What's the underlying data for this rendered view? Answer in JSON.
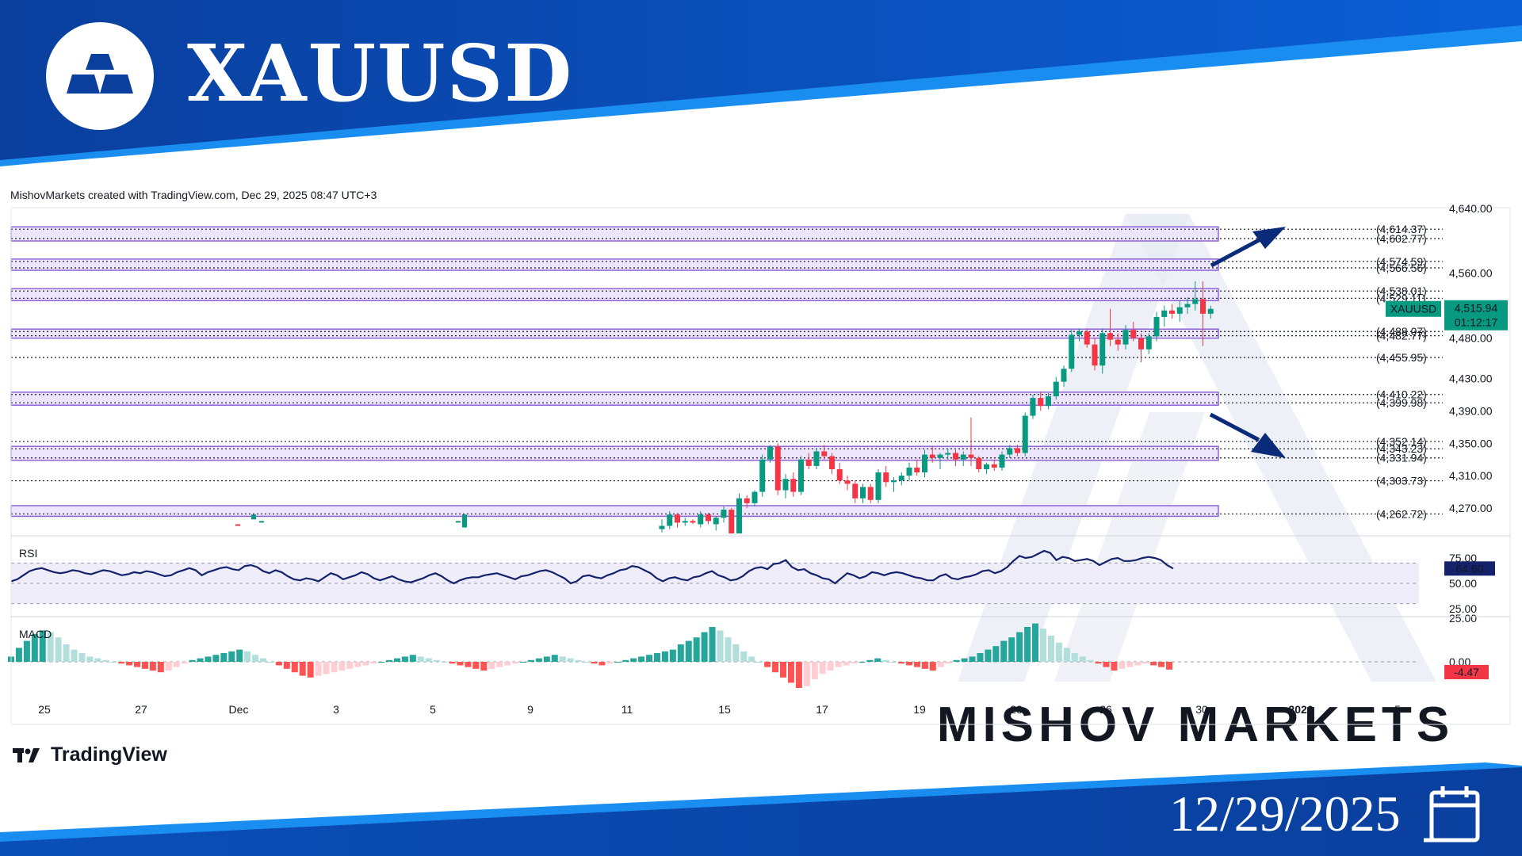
{
  "header": {
    "symbol": "XAUUSD",
    "logo_icon": "gold-bars-icon",
    "brand_color": "#0a4fb5"
  },
  "attribution": "MishovMarkets created with TradingView.com, Dec 29, 2025 08:47 UTC+3",
  "footer": {
    "tradingview_label": "TradingView",
    "date": "12/29/2025",
    "calendar_icon": "calendar-icon"
  },
  "watermark": "MISHOV MARKETS",
  "chart_data": {
    "type": "candlestick",
    "symbol_label": "XAUUSD",
    "last_price_label": "4,515.94",
    "countdown_label": "01:12:17",
    "last_price": 4515.94,
    "price_ticks": [
      "4,640.00",
      "4,560.00",
      "4,480.00",
      "4,430.00",
      "4,390.00",
      "4,350.00",
      "4,310.00",
      "4,270.00"
    ],
    "date_ticks": [
      "25",
      "27",
      "Dec",
      "3",
      "5",
      "9",
      "11",
      "15",
      "17",
      "19",
      "23",
      "26",
      "30",
      "2026",
      "5"
    ],
    "levels": [
      {
        "label": "(4,614.37)",
        "value": 4614.37
      },
      {
        "label": "(4,602.77)",
        "value": 4602.77
      },
      {
        "label": "(4,574.59)",
        "value": 4574.59
      },
      {
        "label": "(4,566.56)",
        "value": 4566.56
      },
      {
        "label": "(4,538.01)",
        "value": 4538.01
      },
      {
        "label": "(4,529.11)",
        "value": 4529.11
      },
      {
        "label": "(4,488.07)",
        "value": 4488.07
      },
      {
        "label": "(4,482.77)",
        "value": 4482.77
      },
      {
        "label": "(4,455.95)",
        "value": 4455.95
      },
      {
        "label": "(4,410.22)",
        "value": 4410.22
      },
      {
        "label": "(4,399.98)",
        "value": 4399.98
      },
      {
        "label": "(4,352.14)",
        "value": 4352.14
      },
      {
        "label": "(4,343.23)",
        "value": 4343.23
      },
      {
        "label": "(4,331.94)",
        "value": 4331.94
      },
      {
        "label": "(4,303.73)",
        "value": 4303.73
      },
      {
        "label": "(4,262.72)",
        "value": 4262.72
      }
    ],
    "zones": [
      [
        4602.77,
        4614.37
      ],
      [
        4566.56,
        4574.59
      ],
      [
        4529.11,
        4538.01
      ],
      [
        4482.77,
        4488.07
      ],
      [
        4399.98,
        4410.22
      ],
      [
        4331.94,
        4343.23
      ],
      [
        4262.72,
        4270.0
      ]
    ],
    "candles": [
      [
        4244,
        4256,
        4240,
        4248
      ],
      [
        4248,
        4266,
        4244,
        4262
      ],
      [
        4262,
        4264,
        4246,
        4252
      ],
      [
        4252,
        4258,
        4248,
        4254
      ],
      [
        4254,
        4256,
        4250,
        4252
      ],
      [
        4250,
        4266,
        4246,
        4262
      ],
      [
        4262,
        4264,
        4250,
        4254
      ],
      [
        4250,
        4260,
        4242,
        4258
      ],
      [
        4258,
        4272,
        4252,
        4268
      ],
      [
        4268,
        4270,
        4222,
        4236
      ],
      [
        4236,
        4288,
        4230,
        4282
      ],
      [
        4282,
        4286,
        4270,
        4276
      ],
      [
        4276,
        4292,
        4272,
        4290
      ],
      [
        4290,
        4336,
        4284,
        4330
      ],
      [
        4330,
        4348,
        4326,
        4346
      ],
      [
        4346,
        4350,
        4286,
        4292
      ],
      [
        4292,
        4312,
        4282,
        4306
      ],
      [
        4306,
        4314,
        4284,
        4290
      ],
      [
        4290,
        4334,
        4286,
        4330
      ],
      [
        4330,
        4338,
        4318,
        4322
      ],
      [
        4322,
        4344,
        4318,
        4340
      ],
      [
        4340,
        4348,
        4330,
        4334
      ],
      [
        4334,
        4338,
        4312,
        4318
      ],
      [
        4318,
        4326,
        4300,
        4304
      ],
      [
        4304,
        4310,
        4292,
        4300
      ],
      [
        4300,
        4304,
        4276,
        4282
      ],
      [
        4282,
        4300,
        4276,
        4296
      ],
      [
        4296,
        4300,
        4276,
        4280
      ],
      [
        4280,
        4318,
        4276,
        4314
      ],
      [
        4314,
        4322,
        4296,
        4302
      ],
      [
        4302,
        4308,
        4290,
        4304
      ],
      [
        4304,
        4314,
        4298,
        4310
      ],
      [
        4310,
        4326,
        4304,
        4320
      ],
      [
        4320,
        4330,
        4310,
        4314
      ],
      [
        4314,
        4342,
        4308,
        4336
      ],
      [
        4336,
        4346,
        4326,
        4332
      ],
      [
        4332,
        4338,
        4318,
        4336
      ],
      [
        4336,
        4344,
        4330,
        4338
      ],
      [
        4338,
        4342,
        4322,
        4330
      ],
      [
        4330,
        4340,
        4322,
        4336
      ],
      [
        4336,
        4382,
        4322,
        4332
      ],
      [
        4332,
        4334,
        4314,
        4318
      ],
      [
        4318,
        4326,
        4312,
        4324
      ],
      [
        4324,
        4330,
        4316,
        4320
      ],
      [
        4320,
        4340,
        4316,
        4336
      ],
      [
        4336,
        4348,
        4332,
        4344
      ],
      [
        4344,
        4348,
        4334,
        4338
      ],
      [
        4338,
        4388,
        4334,
        4384
      ],
      [
        4384,
        4410,
        4380,
        4406
      ],
      [
        4406,
        4414,
        4390,
        4396
      ],
      [
        4396,
        4412,
        4392,
        4408
      ],
      [
        4408,
        4432,
        4404,
        4426
      ],
      [
        4426,
        4446,
        4420,
        4442
      ],
      [
        4442,
        4490,
        4438,
        4484
      ],
      [
        4484,
        4492,
        4476,
        4488
      ],
      [
        4488,
        4492,
        4468,
        4472
      ],
      [
        4472,
        4480,
        4440,
        4446
      ],
      [
        4446,
        4492,
        4436,
        4486
      ],
      [
        4486,
        4516,
        4470,
        4478
      ],
      [
        4478,
        4486,
        4464,
        4472
      ],
      [
        4472,
        4496,
        4466,
        4490
      ],
      [
        4490,
        4500,
        4476,
        4480
      ],
      [
        4480,
        4486,
        4450,
        4466
      ],
      [
        4466,
        4486,
        4460,
        4482
      ],
      [
        4482,
        4512,
        4476,
        4506
      ],
      [
        4506,
        4520,
        4494,
        4514
      ],
      [
        4514,
        4522,
        4504,
        4510
      ],
      [
        4510,
        4526,
        4500,
        4518
      ],
      [
        4518,
        4530,
        4510,
        4522
      ],
      [
        4522,
        4550,
        4514,
        4528
      ],
      [
        4528,
        4550,
        4470,
        4510
      ],
      [
        4510,
        4520,
        4504,
        4516
      ]
    ],
    "rsi": {
      "label": "RSI",
      "last_label": "64.60",
      "last": 64.6,
      "ticks": [
        "75.00",
        "50.00",
        "25.00"
      ],
      "values": [
        52,
        54,
        58,
        62,
        64,
        65,
        63,
        61,
        60,
        61,
        63,
        62,
        60,
        59,
        61,
        63,
        62,
        60,
        58,
        59,
        61,
        60,
        62,
        61,
        59,
        57,
        58,
        61,
        63,
        65,
        63,
        58,
        61,
        63,
        65,
        66,
        64,
        63,
        67,
        68,
        66,
        62,
        60,
        63,
        61,
        57,
        54,
        53,
        55,
        54,
        52,
        56,
        60,
        58,
        54,
        56,
        58,
        61,
        59,
        55,
        53,
        55,
        57,
        54,
        52,
        51,
        53,
        55,
        58,
        60,
        57,
        53,
        50,
        53,
        55,
        56,
        56,
        58,
        59,
        60,
        58,
        56,
        54,
        57,
        58,
        60,
        62,
        63,
        61,
        58,
        55,
        50,
        52,
        57,
        58,
        56,
        55,
        58,
        60,
        63,
        64,
        67,
        66,
        63,
        60,
        55,
        52,
        55,
        56,
        54,
        53,
        56,
        57,
        60,
        62,
        58,
        56,
        53,
        54,
        57,
        62,
        65,
        66,
        64,
        69,
        70,
        73,
        66,
        63,
        64,
        60,
        58,
        55,
        54,
        50,
        55,
        60,
        58,
        55,
        57,
        61,
        60,
        58,
        60,
        61,
        60,
        58,
        56,
        55,
        53,
        53,
        57,
        59,
        55,
        54,
        56,
        57,
        59,
        62,
        63,
        60,
        62,
        66,
        72,
        77,
        75,
        76,
        79,
        82,
        80,
        73,
        76,
        75,
        72,
        73,
        74,
        72,
        68,
        71,
        74,
        75,
        72,
        72,
        73,
        75,
        76,
        75,
        73,
        68,
        64.6
      ]
    },
    "macd": {
      "label": "MACD",
      "last_label": "-4.47",
      "last": -4.47,
      "zero_label": "0.00",
      "ticks": [
        "25.00",
        "0.00"
      ],
      "hist": [
        3,
        8,
        12,
        16,
        18,
        17,
        14,
        10,
        7,
        5,
        3,
        2,
        1,
        0,
        -1,
        -2,
        -3,
        -4,
        -5,
        -6,
        -5,
        -3,
        -1,
        1,
        2,
        3,
        4,
        5,
        6,
        7,
        6,
        4,
        2,
        0,
        -2,
        -4,
        -6,
        -8,
        -9,
        -8,
        -7,
        -6,
        -5,
        -4,
        -3,
        -2,
        -1,
        0,
        1,
        2,
        3,
        4,
        3,
        2,
        1,
        0,
        -1,
        -2,
        -3,
        -4,
        -5,
        -4,
        -3,
        -2,
        -1,
        0,
        1,
        2,
        3,
        4,
        3,
        2,
        1,
        0,
        -1,
        -2,
        -1,
        0,
        1,
        2,
        3,
        4,
        5,
        6,
        7,
        10,
        12,
        14,
        17,
        20,
        18,
        14,
        10,
        6,
        3,
        0,
        -3,
        -6,
        -9,
        -12,
        -15,
        -14,
        -10,
        -7,
        -5,
        -3,
        -2,
        -1,
        0,
        1,
        2,
        1,
        0,
        -1,
        -2,
        -3,
        -4,
        -5,
        -3,
        -1,
        1,
        2,
        3,
        5,
        7,
        9,
        12,
        14,
        17,
        20,
        22,
        19,
        15,
        11,
        8,
        5,
        3,
        1,
        -1,
        -3,
        -5,
        -4,
        -3,
        -2,
        -1,
        -2,
        -3,
        -4.47
      ]
    }
  }
}
